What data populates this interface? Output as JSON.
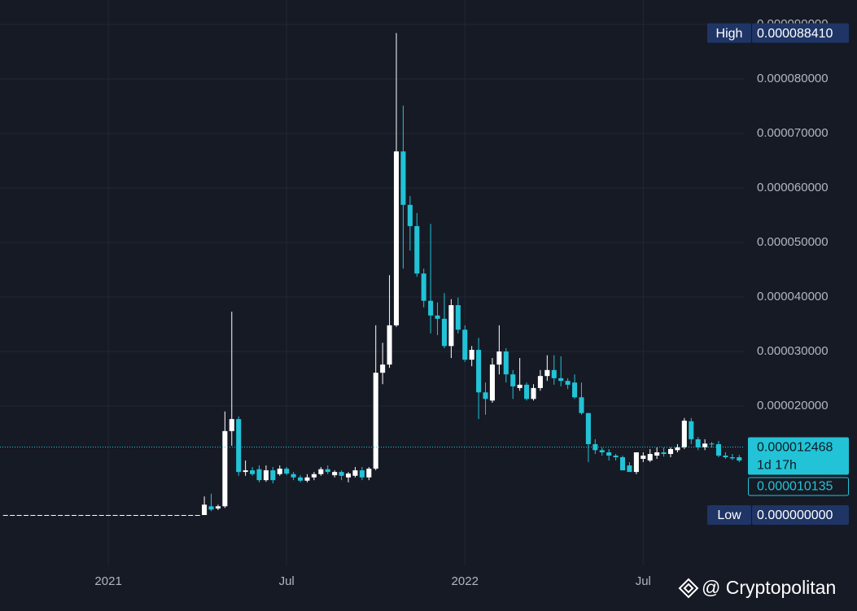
{
  "chart_data": {
    "type": "candlestick",
    "up_color": "#ffffff",
    "down_color": "#22c3d6",
    "grid": true,
    "x": [
      -15,
      -14,
      -13,
      -12,
      -11,
      -10,
      -9,
      -8,
      -7,
      -6,
      -5,
      -4,
      -3,
      -2,
      -1,
      0,
      1,
      2,
      3,
      4,
      5,
      6,
      7,
      8,
      9,
      10,
      11,
      12,
      13,
      14,
      15,
      16,
      17,
      18,
      19,
      20,
      21,
      22,
      23,
      24,
      25,
      26,
      27,
      28,
      29,
      30,
      31,
      32,
      33,
      34,
      35,
      36,
      37,
      38,
      39,
      40,
      41,
      42,
      43,
      44,
      45,
      46,
      47,
      48,
      49,
      50,
      51,
      52,
      53,
      54,
      55,
      56,
      57,
      58,
      59,
      60,
      61,
      62,
      63,
      64,
      65,
      66,
      67,
      68,
      69,
      70,
      71,
      72,
      73,
      74,
      75,
      76,
      77,
      78,
      79,
      80,
      81,
      82,
      83,
      84,
      85,
      86,
      87,
      88,
      89,
      90,
      91,
      92
    ],
    "open": [
      0,
      0,
      0,
      0,
      0,
      0,
      0,
      0,
      0,
      0,
      0,
      0,
      0,
      0,
      0,
      0,
      0,
      0,
      0,
      0,
      0,
      0,
      0,
      0,
      0,
      0,
      0,
      0,
      0,
      0,
      1.6e-06,
      1.2e-06,
      1.6e-06,
      1.54e-05,
      1.76e-05,
      7.9e-06,
      8.2e-06,
      8.4e-06,
      6.4e-06,
      8.2e-06,
      7.5e-06,
      8.5e-06,
      7.5e-06,
      6.9e-06,
      6.3e-06,
      6.9e-06,
      7.5e-06,
      8.4e-06,
      7.3e-06,
      7.9e-06,
      6.9e-06,
      7.2e-06,
      8.2e-06,
      6.9e-06,
      8.5e-06,
      2.61e-05,
      2.76e-05,
      3.48e-05,
      6.67e-05,
      5.69e-05,
      5.3e-05,
      4.43e-05,
      3.93e-05,
      3.66e-05,
      3.6e-05,
      3.1e-05,
      3.85e-05,
      3.4e-05,
      2.85e-05,
      3.03e-05,
      2.25e-05,
      2.1e-05,
      2.76e-05,
      3e-05,
      2.58e-05,
      2.33e-05,
      2.39e-05,
      2.13e-05,
      2.33e-05,
      2.55e-05,
      2.66e-05,
      2.51e-05,
      2.46e-05,
      2.43e-05,
      2.16e-05,
      1.87e-05,
      1.3e-05,
      1.19e-05,
      1.15e-05,
      1.09e-05,
      1.06e-05,
      9.1e-06,
      7.9e-06,
      1.03e-05,
      1e-05,
      1.09e-05,
      1.15e-05,
      1.12e-05,
      1.19e-05,
      1.24e-05,
      1.72e-05,
      1.39e-05,
      1.24e-05,
      1.31e-05,
      1.3e-05,
      1.09e-05,
      1.06e-05,
      1.06e-05
    ],
    "high": [
      0,
      0,
      0,
      0,
      0,
      0,
      0,
      0,
      0,
      0,
      0,
      0,
      0,
      0,
      0,
      0,
      0,
      0,
      0,
      0,
      0,
      0,
      0,
      0,
      0,
      0,
      0,
      0,
      0,
      3.4e-06,
      3.9e-06,
      1.9e-06,
      1.9e-05,
      3.73e-05,
      1.81e-05,
      1e-05,
      8.8e-06,
      9.1e-06,
      9.1e-06,
      8.8e-06,
      9.1e-06,
      8.8e-06,
      7.9e-06,
      7.3e-06,
      7.5e-06,
      7.9e-06,
      8.8e-06,
      9.1e-06,
      8.2e-06,
      8.2e-06,
      7.9e-06,
      8.8e-06,
      8.8e-06,
      8.8e-06,
      3.48e-05,
      3.16e-05,
      4.4e-05,
      8.841e-05,
      7.51e-05,
      5.85e-05,
      5.54e-05,
      4.52e-05,
      5.34e-05,
      3.9e-05,
      4.07e-05,
      3.96e-05,
      3.99e-05,
      3.48e-05,
      3.1e-05,
      3.25e-05,
      2.43e-05,
      2.88e-05,
      3.48e-05,
      3.06e-05,
      2.66e-05,
      2.88e-05,
      2.43e-05,
      2.4e-05,
      2.66e-05,
      2.93e-05,
      2.93e-05,
      2.91e-05,
      2.51e-05,
      2.58e-05,
      2.43e-05,
      1.87e-05,
      1.39e-05,
      1.24e-05,
      1.21e-05,
      1.12e-05,
      1.09e-05,
      9.7e-06,
      1.15e-05,
      1.15e-05,
      1.21e-05,
      1.24e-05,
      1.24e-05,
      1.24e-05,
      1.3e-05,
      1.78e-05,
      1.78e-05,
      1.43e-05,
      1.39e-05,
      1.34e-05,
      1.36e-05,
      1.15e-05,
      1.12e-05,
      1.1e-05
    ],
    "low": [
      0,
      0,
      0,
      0,
      0,
      0,
      0,
      0,
      0,
      0,
      0,
      0,
      0,
      0,
      0,
      0,
      0,
      0,
      0,
      0,
      0,
      0,
      0,
      0,
      0,
      0,
      0,
      0,
      0,
      0,
      7e-07,
      9e-07,
      1.3e-06,
      1.27e-05,
      7.2e-06,
      7.2e-06,
      7.2e-06,
      6e-06,
      6.1e-06,
      5.8e-06,
      7.2e-06,
      7.3e-06,
      6.4e-06,
      6e-06,
      6e-06,
      6.4e-06,
      7.2e-06,
      7.5e-06,
      6.9e-06,
      6.4e-06,
      6e-06,
      6.9e-06,
      6.4e-06,
      6.4e-06,
      8.2e-06,
      2.4e-05,
      2.7e-05,
      3.45e-05,
      4.52e-05,
      4.85e-05,
      4.37e-05,
      3.81e-05,
      3.33e-05,
      3.3e-05,
      3.06e-05,
      2.88e-05,
      3.33e-05,
      2.81e-05,
      2.73e-05,
      1.76e-05,
      1.84e-05,
      2.06e-05,
      2.58e-05,
      2.43e-05,
      2.13e-05,
      2.28e-05,
      2.1e-05,
      2.1e-05,
      2.28e-05,
      2.46e-05,
      2.39e-05,
      2.36e-05,
      2.31e-05,
      2.13e-05,
      1.84e-05,
      9.7e-06,
      1.12e-05,
      1.09e-05,
      1e-05,
      1e-05,
      8.2e-06,
      7.9e-06,
      7.5e-06,
      9.7e-06,
      9.7e-06,
      1.03e-05,
      1.07e-05,
      1.06e-05,
      1.15e-05,
      1.21e-05,
      1.3e-05,
      1.19e-05,
      1.19e-05,
      1.24e-05,
      1.06e-05,
      1.03e-05,
      1.01e-05,
      9.7e-06
    ],
    "close": [
      0,
      0,
      0,
      0,
      0,
      0,
      0,
      0,
      0,
      0,
      0,
      0,
      0,
      0,
      0,
      0,
      0,
      0,
      0,
      0,
      0,
      0,
      0,
      0,
      0,
      0,
      0,
      0,
      0,
      1.9e-06,
      1e-06,
      1.6e-06,
      1.54e-05,
      1.76e-05,
      7.9e-06,
      8.2e-06,
      7.5e-06,
      6.4e-06,
      8.2e-06,
      6.4e-06,
      8.5e-06,
      7.6e-06,
      6.9e-06,
      6.3e-06,
      6.9e-06,
      7.5e-06,
      8.4e-06,
      7.9e-06,
      7.9e-06,
      7.2e-06,
      7.6e-06,
      8.2e-06,
      6.9e-06,
      8.5e-06,
      2.61e-05,
      2.76e-05,
      3.48e-05,
      6.67e-05,
      5.69e-05,
      5.3e-05,
      4.43e-05,
      3.93e-05,
      3.66e-05,
      3.6e-05,
      3.1e-05,
      3.85e-05,
      3.4e-05,
      2.85e-05,
      3.03e-05,
      2.25e-05,
      2.13e-05,
      2.76e-05,
      3e-05,
      2.58e-05,
      2.36e-05,
      2.39e-05,
      2.13e-05,
      2.33e-05,
      2.55e-05,
      2.66e-05,
      2.51e-05,
      2.46e-05,
      2.39e-05,
      2.16e-05,
      1.87e-05,
      1.3e-05,
      1.19e-05,
      1.15e-05,
      1.09e-05,
      1.06e-05,
      8.2e-06,
      7.9e-06,
      1.15e-05,
      1.09e-05,
      1.12e-05,
      1.15e-05,
      1.12e-05,
      1.21e-05,
      1.24e-05,
      1.73e-05,
      1.39e-05,
      1.24e-05,
      1.31e-05,
      1.3e-05,
      1.09e-05,
      1.06e-05,
      1.04e-05,
      1e-05
    ],
    "xlim": [
      -15.8,
      92.8
    ],
    "ylim": [
      -9.25e-06,
      9.448e-05
    ],
    "xticks": [
      {
        "value": 0,
        "label": "2021"
      },
      {
        "value": 26,
        "label": "Jul"
      },
      {
        "value": 52,
        "label": "2022"
      },
      {
        "value": 78,
        "label": "Jul"
      }
    ],
    "yticks": [
      {
        "value": 2e-05,
        "label": "0.000020000"
      },
      {
        "value": 3e-05,
        "label": "0.000030000"
      },
      {
        "value": 4e-05,
        "label": "0.000040000"
      },
      {
        "value": 5e-05,
        "label": "0.000050000"
      },
      {
        "value": 6e-05,
        "label": "0.000060000"
      },
      {
        "value": 7e-05,
        "label": "0.000070000"
      },
      {
        "value": 8e-05,
        "label": "0.000080000"
      },
      {
        "value": 9e-05,
        "label": "0.000090000"
      }
    ],
    "high_tag": {
      "text": "High",
      "price": {
        "value": 8.841e-05,
        "label": "0.000088410"
      }
    },
    "low_tag": {
      "text": "Low",
      "price": {
        "value": 0,
        "label": "0.000000000"
      }
    },
    "last_price": {
      "value": 1.2468e-05,
      "label": "0.000012468"
    },
    "countdown": "1d 17h",
    "second_price": {
      "value": 1.0135e-05,
      "label": "0.000010135"
    },
    "watermark": "@ Cryptopolitan"
  }
}
